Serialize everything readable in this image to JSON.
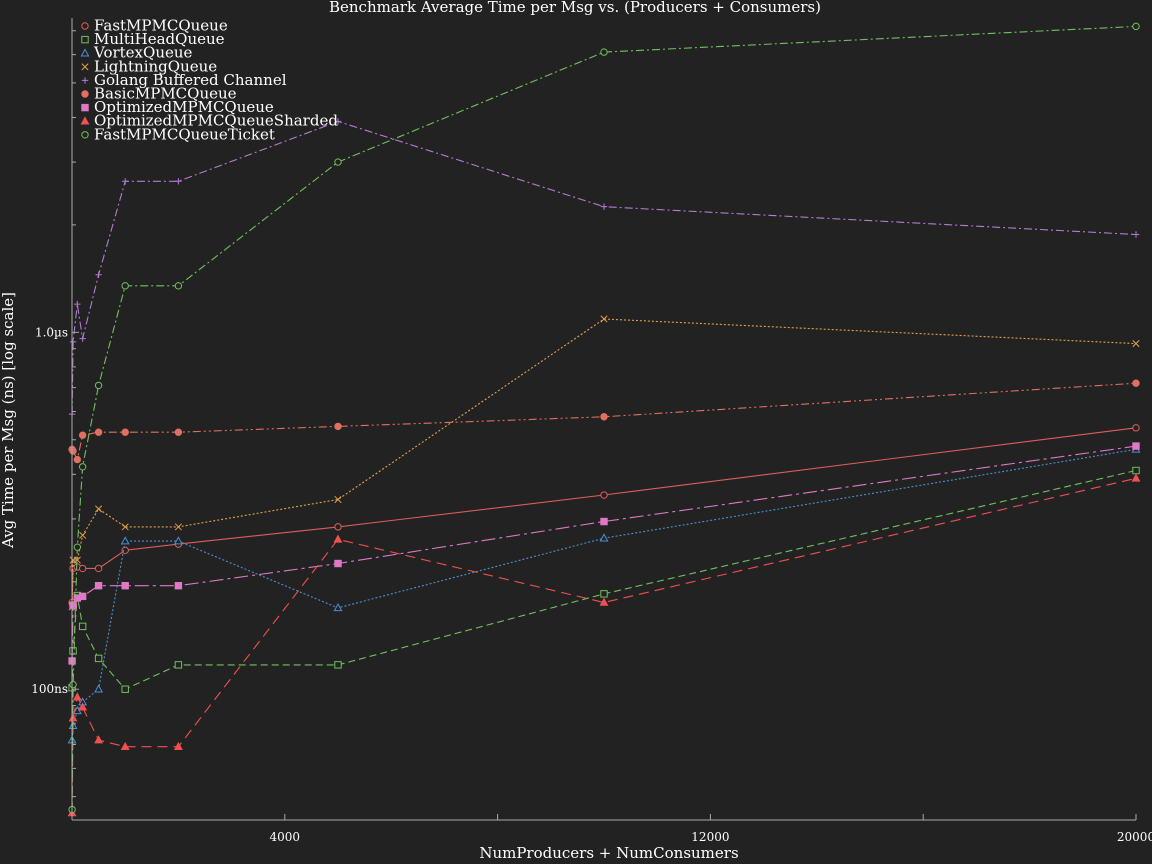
{
  "chart_data": {
    "type": "line",
    "title": "Benchmark Average Time per Msg vs. (Producers + Consumers)",
    "xlabel": "NumProducers + NumConsumers",
    "ylabel": "Avg Time per Msg (ns) [log scale]",
    "x_scale": "linear",
    "y_scale": "log",
    "xlim": [
      0,
      20000
    ],
    "ylim": [
      43,
      7600
    ],
    "x_ticks": [
      4000,
      12000,
      20000
    ],
    "x_tick_labels": [
      "4000",
      "12000",
      "20000"
    ],
    "y_ticks": [
      100,
      1000
    ],
    "y_tick_labels": [
      "100ns",
      "1.0µs"
    ],
    "grid": false,
    "legend_position": "top-left",
    "x": [
      2,
      20,
      100,
      200,
      500,
      1000,
      2000,
      5000,
      10000,
      20000
    ],
    "series": [
      {
        "name": "FastMPMCQueue",
        "color": "#e05c5c",
        "marker": "circle-open",
        "dash": "solid",
        "values": [
          175,
          218,
          220,
          218,
          218,
          245,
          255,
          285,
          350,
          540
        ]
      },
      {
        "name": "MultiHeadQueue",
        "color": "#6fc25b",
        "marker": "square-open",
        "dash": "dashed",
        "values": [
          101,
          128,
          183,
          150,
          122,
          100,
          117,
          117,
          185,
          410
        ]
      },
      {
        "name": "VortexQueue",
        "color": "#4c8fd6",
        "marker": "triangle-open",
        "dash": "dotted",
        "values": [
          72,
          79,
          87,
          92,
          100,
          260,
          260,
          169,
          265,
          470
        ]
      },
      {
        "name": "LightningQueue",
        "color": "#e6a04b",
        "marker": "x",
        "dash": "dotted",
        "values": [
          170,
          230,
          230,
          270,
          320,
          285,
          285,
          340,
          1090,
          930
        ]
      },
      {
        "name": "Golang Buffered Channel",
        "color": "#b77ad6",
        "marker": "plus",
        "dash": "dashdot",
        "values": [
          590,
          940,
          1200,
          960,
          1450,
          2650,
          2650,
          3900,
          2250,
          1880
        ]
      },
      {
        "name": "BasicMPMCQueue",
        "color": "#e07060",
        "marker": "circle-filled",
        "dash": "dashdotdot",
        "values": [
          470,
          465,
          440,
          515,
          525,
          525,
          525,
          545,
          580,
          720
        ]
      },
      {
        "name": "OptimizedMPMCQueue",
        "color": "#e078c8",
        "marker": "square-filled",
        "dash": "longdashdot",
        "values": [
          120,
          172,
          180,
          182,
          195,
          195,
          195,
          225,
          295,
          480
        ]
      },
      {
        "name": "OptimizedMPMCQueueSharded",
        "color": "#f05050",
        "marker": "triangle-filled",
        "dash": "longdash",
        "values": [
          45,
          83,
          95,
          89,
          72,
          69,
          69,
          263,
          175,
          390
        ]
      },
      {
        "name": "FastMPMCQueueTicket",
        "color": "#6fc25b",
        "marker": "circle-open",
        "dash": "dashdot",
        "values": [
          46,
          103,
          250,
          420,
          710,
          1350,
          1350,
          3000,
          6100,
          7200
        ]
      }
    ]
  }
}
